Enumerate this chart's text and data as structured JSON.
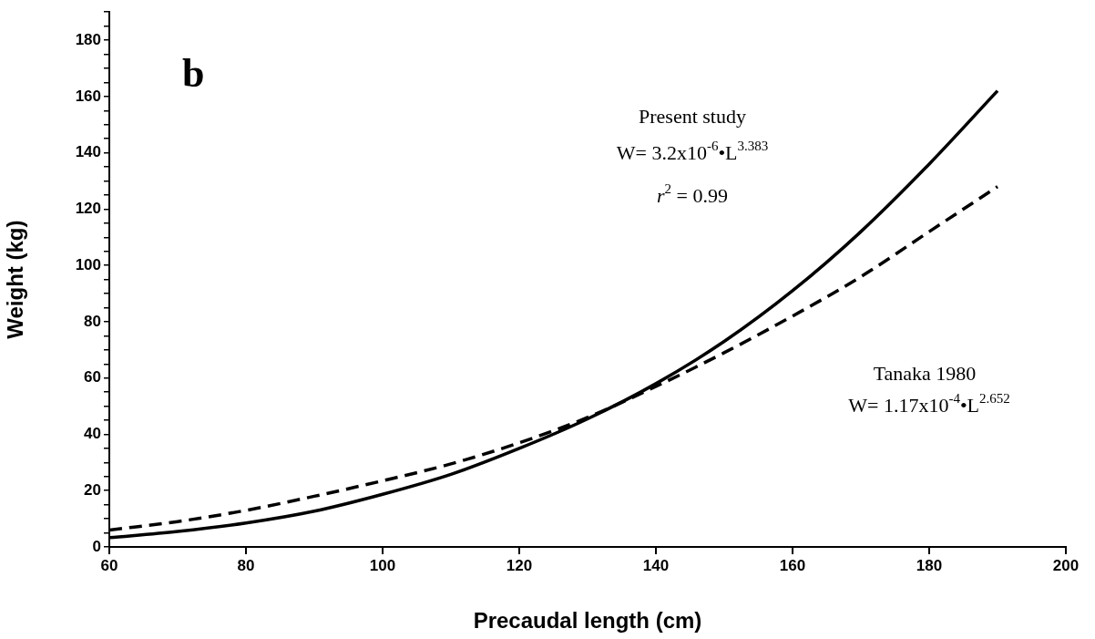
{
  "chart_data": {
    "type": "line",
    "xlabel": "Precaudal length (cm)",
    "ylabel": "Weight (kg)",
    "x": [
      60,
      70,
      80,
      90,
      100,
      110,
      120,
      130,
      140,
      150,
      160,
      170,
      180,
      190
    ],
    "series": [
      {
        "color": "#000000",
        "line_style": "solid",
        "values": [
          3.3,
          5.5,
          8.5,
          12.7,
          18.7,
          25.8,
          35,
          45.5,
          58,
          73,
          91,
          112,
          136,
          162
        ]
      },
      {
        "color": "#000000",
        "line_style": "dashed",
        "values": [
          6,
          9,
          13,
          18,
          23.5,
          29.5,
          37,
          46,
          57,
          69,
          82,
          96,
          112,
          128
        ]
      }
    ],
    "annotations": [
      "b",
      "Present study",
      "W= 3.2x10$^{-6}$•L$^{3.383}$",
      "r$^{2}$ = 0.99",
      "Tanaka 1980",
      "W= 1.17x10$^{-4}$•L$^{2.652}$"
    ],
    "xlim": [
      60,
      200
    ],
    "xticks": [
      60,
      80,
      100,
      120,
      140,
      160,
      180,
      200
    ],
    "ylim": [
      0,
      190
    ],
    "yticks": [
      0,
      {
        "value": 5,
        "label": null
      },
      {
        "value": 10,
        "label": null
      },
      {
        "value": 15,
        "label": null
      },
      20,
      {
        "value": 25,
        "label": null
      },
      {
        "value": 30,
        "label": null
      },
      {
        "value": 35,
        "label": null
      },
      40,
      {
        "value": 45,
        "label": null
      },
      {
        "value": 50,
        "label": null
      },
      {
        "value": 55,
        "label": null
      },
      60,
      {
        "value": 65,
        "label": null
      },
      {
        "value": 70,
        "label": null
      },
      {
        "value": 75,
        "label": null
      },
      80,
      {
        "value": 85,
        "label": null
      },
      {
        "value": 90,
        "label": null
      },
      {
        "value": 95,
        "label": null
      },
      100,
      {
        "value": 105,
        "label": null
      },
      {
        "value": 110,
        "label": null
      },
      {
        "value": 115,
        "label": null
      },
      120,
      {
        "value": 125,
        "label": null
      },
      {
        "value": 130,
        "label": null
      },
      {
        "value": 135,
        "label": null
      },
      140,
      {
        "value": 145,
        "label": null
      },
      {
        "value": 150,
        "label": null
      },
      {
        "value": 155,
        "label": null
      },
      160,
      {
        "value": 165,
        "label": null
      },
      {
        "value": 170,
        "label": null
      },
      {
        "value": 175,
        "label": null
      },
      180,
      {
        "value": 185,
        "label": null
      },
      {
        "value": 190,
        "label": null
      }
    ],
    "grid": false,
    "legend": false,
    "marker": "none"
  }
}
